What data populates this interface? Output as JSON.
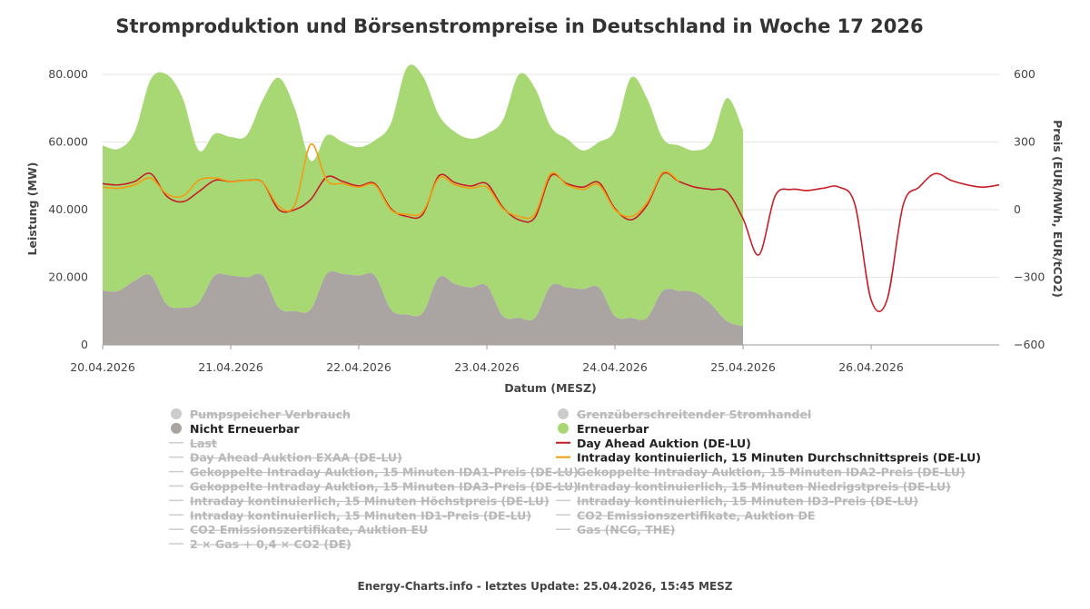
{
  "chart_data": {
    "type": "area",
    "title": "Stromproduktion und Börsenstrompreise in Deutschland in Woche 17 2026",
    "xlabel": "Datum (MESZ)",
    "ylabel": "Leistung (MW)",
    "ylabel_right": "Preis (EUR/MWh, EUR/tCO2)",
    "x_range": [
      "2026-04-20T00:00",
      "2026-04-27T00:00"
    ],
    "x_ticks": [
      "20.04.2026",
      "21.04.2026",
      "22.04.2026",
      "23.04.2026",
      "24.04.2026",
      "25.04.2026",
      "26.04.2026"
    ],
    "y_range": [
      0,
      80000
    ],
    "y_ticks": [
      "0",
      "20.000",
      "40.000",
      "60.000",
      "80.000"
    ],
    "y_right_range": [
      -600,
      600
    ],
    "y_right_ticks": [
      "−600",
      "−300",
      "0",
      "300",
      "600"
    ],
    "grid": true,
    "legend_position": "bottom",
    "x_hours": [
      0,
      3,
      6,
      9,
      12,
      15,
      18,
      21,
      24,
      27,
      30,
      33,
      36,
      39,
      42,
      45,
      48,
      51,
      54,
      57,
      60,
      63,
      66,
      69,
      72,
      75,
      78,
      81,
      84,
      87,
      90,
      93,
      96,
      99,
      102,
      105,
      108,
      111,
      114,
      117,
      120,
      123,
      126,
      129,
      132,
      135,
      138,
      141,
      144,
      147,
      150,
      153,
      156,
      159,
      162,
      165,
      168
    ],
    "series": [
      {
        "name": "Nicht Erneuerbar",
        "axis": "left",
        "kind": "area",
        "color": "#aaa5a3",
        "values": [
          16000,
          16000,
          19000,
          20500,
          12000,
          11000,
          12500,
          20500,
          20500,
          20000,
          20500,
          11000,
          10000,
          10500,
          21000,
          21000,
          20500,
          20500,
          10500,
          9000,
          9500,
          20000,
          18000,
          17000,
          17500,
          8500,
          8000,
          8000,
          17500,
          17000,
          16500,
          17000,
          8500,
          8000,
          8000,
          16000,
          16000,
          15500,
          12000,
          7000,
          5500,
          null,
          null,
          null,
          null,
          null,
          null,
          null,
          null,
          null,
          null,
          null,
          null,
          null,
          null,
          null,
          null
        ]
      },
      {
        "name": "Erneuerbar",
        "axis": "left",
        "kind": "area",
        "color": "#a7d873",
        "values": [
          43000,
          42000,
          44000,
          58000,
          68000,
          62000,
          45000,
          42000,
          41000,
          42000,
          52000,
          68000,
          60000,
          44000,
          41000,
          39000,
          38000,
          40000,
          55000,
          73000,
          70000,
          48000,
          45000,
          44000,
          45000,
          58000,
          72000,
          68000,
          47000,
          44000,
          41000,
          43000,
          55000,
          71000,
          65000,
          45000,
          43000,
          42000,
          48000,
          66000,
          58000,
          null,
          null,
          null,
          null,
          null,
          null,
          null,
          null,
          null,
          null,
          null,
          null,
          null,
          null,
          null,
          null
        ]
      },
      {
        "name": "Day Ahead Auktion (DE-LU)",
        "axis": "right",
        "kind": "line",
        "color": "#c81e28",
        "values": [
          115,
          110,
          125,
          160,
          60,
          35,
          80,
          130,
          125,
          130,
          120,
          0,
          0,
          45,
          145,
          125,
          105,
          115,
          5,
          -30,
          -20,
          150,
          120,
          105,
          115,
          10,
          -45,
          -35,
          150,
          115,
          100,
          120,
          5,
          -45,
          20,
          160,
          125,
          100,
          90,
          80,
          -40,
          -200,
          60,
          90,
          85,
          95,
          100,
          20,
          -400,
          -400,
          20,
          100,
          160,
          130,
          110,
          100,
          110
        ]
      },
      {
        "name": "Intraday kontinuierlich, 15 Minuten Durchschnittspreis (DE-LU)",
        "axis": "right",
        "kind": "line",
        "color": "#f39c12",
        "values": [
          100,
          95,
          110,
          140,
          70,
          60,
          130,
          140,
          125,
          130,
          120,
          15,
          20,
          290,
          130,
          115,
          100,
          110,
          0,
          -20,
          -10,
          140,
          110,
          95,
          100,
          5,
          -30,
          -20,
          160,
          110,
          90,
          110,
          0,
          -30,
          30,
          165,
          125,
          null,
          null,
          null,
          null,
          null,
          null,
          null,
          null,
          null,
          null,
          null,
          null,
          null,
          null,
          null,
          null,
          null,
          null,
          null,
          null
        ]
      }
    ]
  },
  "legend": {
    "col1": [
      {
        "label": "Pumpspeicher Verbrauch",
        "type": "dot",
        "color": "#c9c9c9",
        "active": false
      },
      {
        "label": "Nicht Erneuerbar",
        "type": "dot",
        "color": "#aaa5a3",
        "active": true
      },
      {
        "label": "Last",
        "type": "line",
        "color": "#cccccc",
        "active": false
      },
      {
        "label": "Day Ahead Auktion EXAA (DE-LU)",
        "type": "line",
        "color": "#cccccc",
        "active": false
      },
      {
        "label": "Gekoppelte Intraday Auktion, 15 Minuten IDA1-Preis (DE-LU)",
        "type": "line",
        "color": "#cccccc",
        "active": false
      },
      {
        "label": "Gekoppelte Intraday Auktion, 15 Minuten IDA3-Preis (DE-LU)",
        "type": "line",
        "color": "#cccccc",
        "active": false
      },
      {
        "label": "Intraday kontinuierlich, 15 Minuten Höchstpreis (DE-LU)",
        "type": "line",
        "color": "#cccccc",
        "active": false
      },
      {
        "label": "Intraday kontinuierlich, 15 Minuten ID1-Preis (DE-LU)",
        "type": "line",
        "color": "#cccccc",
        "active": false
      },
      {
        "label": "CO2 Emissionszertifikate, Auktion EU",
        "type": "line",
        "color": "#cccccc",
        "active": false
      },
      {
        "label": "2 × Gas + 0,4 × CO2 (DE)",
        "type": "line",
        "color": "#cccccc",
        "active": false
      }
    ],
    "col2": [
      {
        "label": "Grenzüberschreitender Stromhandel",
        "type": "dot",
        "color": "#c9c9c9",
        "active": false
      },
      {
        "label": "Erneuerbar",
        "type": "dot",
        "color": "#a7d873",
        "active": true
      },
      {
        "label": "Day Ahead Auktion (DE-LU)",
        "type": "line",
        "color": "#c81e28",
        "active": true
      },
      {
        "label": "Intraday kontinuierlich, 15 Minuten Durchschnittspreis (DE-LU)",
        "type": "line",
        "color": "#f39c12",
        "active": true
      },
      {
        "label": "Gekoppelte Intraday Auktion, 15 Minuten IDA2-Preis (DE-LU)",
        "type": "line",
        "color": "#cccccc",
        "active": false
      },
      {
        "label": "Intraday kontinuierlich, 15 Minuten Niedrigstpreis (DE-LU)",
        "type": "line",
        "color": "#cccccc",
        "active": false
      },
      {
        "label": "Intraday kontinuierlich, 15 Minuten ID3-Preis (DE-LU)",
        "type": "line",
        "color": "#cccccc",
        "active": false
      },
      {
        "label": "CO2 Emissionszertifikate, Auktion DE",
        "type": "line",
        "color": "#cccccc",
        "active": false
      },
      {
        "label": "Gas (NCG, THE)",
        "type": "line",
        "color": "#cccccc",
        "active": false
      }
    ]
  },
  "footer": "Energy-Charts.info - letztes Update: 25.04.2026, 15:45 MESZ"
}
